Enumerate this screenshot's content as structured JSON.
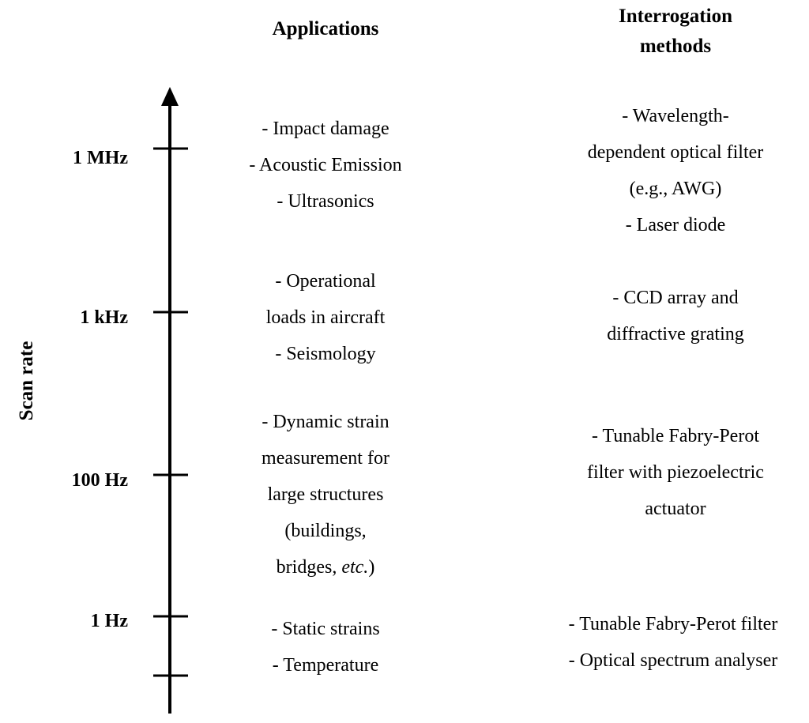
{
  "headers": {
    "applications": "Applications",
    "interrogation": [
      "Interrogation",
      "methods"
    ]
  },
  "axis": {
    "label": "Scan rate",
    "ticks": [
      "1 MHz",
      "1 kHz",
      "100 Hz",
      "1 Hz"
    ]
  },
  "applications": [
    [
      "- Impact damage",
      "- Acoustic Emission",
      "- Ultrasonics"
    ],
    [
      "- Operational",
      "loads in aircraft",
      "- Seismology"
    ],
    [
      "- Dynamic strain",
      "measurement for",
      "large structures",
      "(buildings,",
      "bridges, ",
      "etc.",
      ")"
    ],
    [
      "- Static strains",
      "- Temperature"
    ]
  ],
  "methods": [
    [
      "- Wavelength-",
      "dependent optical filter",
      "(e.g., AWG)",
      "- Laser diode"
    ],
    [
      "- CCD array and",
      "diffractive grating"
    ],
    [
      "- Tunable Fabry-Perot",
      "filter with piezoelectric",
      "actuator"
    ],
    [
      "- Tunable Fabry-Perot filter",
      "- Optical spectrum analyser"
    ]
  ]
}
